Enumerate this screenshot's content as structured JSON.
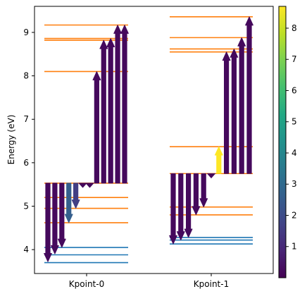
{
  "chart_data": {
    "type": "energy-level-transition",
    "ylabel": "Energy (eV)",
    "ylim": [
      3.45,
      9.6
    ],
    "yticks": [
      "4",
      "5",
      "6",
      "7",
      "8",
      "9"
    ],
    "xticks": [
      "Kpoint-0",
      "Kpoint-1"
    ],
    "colorbar": {
      "colormap": "viridis",
      "range": [
        0,
        8.7
      ],
      "ticks": [
        "1",
        "2",
        "3",
        "4",
        "5",
        "6",
        "7",
        "8"
      ]
    },
    "fermi_level": [
      5.53,
      5.75
    ],
    "levels": [
      {
        "kpoint": "Kpoint-0",
        "occupied": [
          3.7,
          3.88,
          4.05
        ],
        "unoccupied": [
          4.62,
          4.95,
          5.2,
          5.53,
          8.1,
          8.82,
          8.86,
          9.17
        ]
      },
      {
        "kpoint": "Kpoint-1",
        "occupied": [
          4.13,
          4.22,
          4.28
        ],
        "unoccupied": [
          4.8,
          4.98,
          5.75,
          6.37,
          8.55,
          8.62,
          8.88,
          9.36
        ]
      }
    ],
    "transitions": [
      {
        "kpoint": "Kpoint-0",
        "from": 5.53,
        "to": 3.72,
        "intensity": 0.2
      },
      {
        "kpoint": "Kpoint-0",
        "from": 5.53,
        "to": 3.9,
        "intensity": 0.2
      },
      {
        "kpoint": "Kpoint-0",
        "from": 5.53,
        "to": 4.05,
        "intensity": 0.2
      },
      {
        "kpoint": "Kpoint-0",
        "from": 5.53,
        "to": 4.62,
        "intensity": 2.6
      },
      {
        "kpoint": "Kpoint-0",
        "from": 5.53,
        "to": 4.95,
        "intensity": 1.6
      },
      {
        "kpoint": "Kpoint-0",
        "from": 5.53,
        "to": 5.43,
        "intensity": 0.2
      },
      {
        "kpoint": "Kpoint-0",
        "from": 5.53,
        "to": 5.43,
        "intensity": 0.2
      },
      {
        "kpoint": "Kpoint-0",
        "from": 5.53,
        "to": 8.1,
        "intensity": 0.2
      },
      {
        "kpoint": "Kpoint-0",
        "from": 5.53,
        "to": 8.82,
        "intensity": 0.2
      },
      {
        "kpoint": "Kpoint-0",
        "from": 5.53,
        "to": 8.86,
        "intensity": 0.2
      },
      {
        "kpoint": "Kpoint-0",
        "from": 5.53,
        "to": 9.17,
        "intensity": 0.2
      },
      {
        "kpoint": "Kpoint-0",
        "from": 5.53,
        "to": 9.17,
        "intensity": 0.2
      },
      {
        "kpoint": "Kpoint-1",
        "from": 5.75,
        "to": 4.13,
        "intensity": 0.2
      },
      {
        "kpoint": "Kpoint-1",
        "from": 5.75,
        "to": 4.22,
        "intensity": 0.2
      },
      {
        "kpoint": "Kpoint-1",
        "from": 5.75,
        "to": 4.28,
        "intensity": 0.2
      },
      {
        "kpoint": "Kpoint-1",
        "from": 5.75,
        "to": 4.8,
        "intensity": 0.2
      },
      {
        "kpoint": "Kpoint-1",
        "from": 5.75,
        "to": 4.98,
        "intensity": 0.2
      },
      {
        "kpoint": "Kpoint-1",
        "from": 5.75,
        "to": 5.65,
        "intensity": 0.2
      },
      {
        "kpoint": "Kpoint-1",
        "from": 5.75,
        "to": 6.37,
        "intensity": 8.7
      },
      {
        "kpoint": "Kpoint-1",
        "from": 5.75,
        "to": 8.55,
        "intensity": 0.2
      },
      {
        "kpoint": "Kpoint-1",
        "from": 5.75,
        "to": 8.62,
        "intensity": 0.2
      },
      {
        "kpoint": "Kpoint-1",
        "from": 5.75,
        "to": 8.88,
        "intensity": 0.2
      },
      {
        "kpoint": "Kpoint-1",
        "from": 5.75,
        "to": 9.36,
        "intensity": 0.2
      }
    ]
  }
}
